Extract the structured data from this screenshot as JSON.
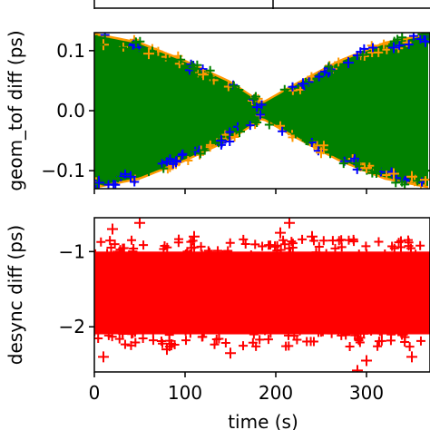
{
  "chart_data": [
    {
      "type": "scatter",
      "title": "",
      "xlabel": "",
      "ylabel": "geom_tof diff (ps)",
      "ylim": [
        -0.13,
        0.13
      ],
      "yticks": [
        -0.1,
        0.0,
        0.1
      ],
      "ytick_labels": [
        "−0.1",
        "0.0",
        "0.1"
      ],
      "grid": false,
      "marker": "+",
      "envelope": {
        "x": [
          0,
          50,
          100,
          150,
          185,
          220,
          270,
          320,
          370
        ],
        "amplitude": [
          0.12,
          0.105,
          0.075,
          0.04,
          0.005,
          0.035,
          0.075,
          0.105,
          0.12
        ]
      },
      "series": [
        {
          "color": "#ff9900",
          "points": [
            [
              10,
              0.11
            ],
            [
              60,
              0.095
            ],
            [
              120,
              0.06
            ],
            [
              250,
              -0.07
            ],
            [
              300,
              -0.095
            ],
            [
              330,
              -0.105
            ],
            [
              350,
              -0.11
            ],
            [
              365,
              -0.115
            ]
          ]
        },
        {
          "color": "#0000ff",
          "points": [
            [
              5,
              -0.12
            ],
            [
              40,
              -0.11
            ],
            [
              90,
              -0.085
            ],
            [
              140,
              -0.05
            ],
            [
              230,
              0.045
            ],
            [
              280,
              0.08
            ],
            [
              330,
              0.105
            ],
            [
              365,
              0.115
            ]
          ]
        },
        {
          "color": "#008000",
          "points": [
            [
              5,
              0.11
            ],
            [
              30,
              0.105
            ],
            [
              60,
              -0.1
            ],
            [
              110,
              0.07
            ],
            [
              160,
              -0.035
            ],
            [
              200,
              0.01
            ],
            [
              260,
              -0.07
            ],
            [
              300,
              -0.085
            ],
            [
              340,
              0.09
            ],
            [
              365,
              -0.1
            ]
          ]
        }
      ]
    },
    {
      "type": "scatter",
      "title": "",
      "xlabel": "time (s)",
      "ylabel": "desync diff (ps)",
      "xlim": [
        0,
        370
      ],
      "xticks": [
        0,
        100,
        200,
        300
      ],
      "xtick_labels": [
        "0",
        "100",
        "200",
        "300"
      ],
      "ylim": [
        -2.6,
        -0.55
      ],
      "yticks": [
        -1,
        -2
      ],
      "ytick_labels": [
        "−1",
        "−2"
      ],
      "grid": false,
      "marker": "+",
      "band": {
        "center": -1.55,
        "halfwidth": 0.55
      },
      "series": [
        {
          "color": "#ff0000",
          "points": [
            [
              20,
              -0.7
            ],
            [
              50,
              -0.62
            ],
            [
              110,
              -0.8
            ],
            [
              205,
              -0.75
            ],
            [
              215,
              -0.62
            ],
            [
              290,
              -2.58
            ],
            [
              300,
              -2.45
            ],
            [
              350,
              -2.4
            ],
            [
              150,
              -2.35
            ],
            [
              10,
              -2.4
            ],
            [
              80,
              -2.3
            ],
            [
              240,
              -0.8
            ]
          ]
        }
      ]
    }
  ]
}
